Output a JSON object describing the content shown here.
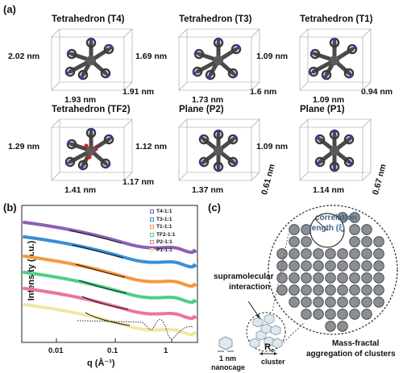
{
  "panel_a": {
    "letter": "(a)",
    "structures": [
      {
        "title": "Tetrahedron (T4)",
        "height": "2.02 nm",
        "width": "1.93 nm",
        "depth": "1.91 nm"
      },
      {
        "title": "Tetrahedron (T3)",
        "height": "1.69 nm",
        "width": "1.73 nm",
        "depth": "1.6 nm"
      },
      {
        "title": "Tetrahedron (T1)",
        "height": "1.09 nm",
        "width": "1.09 nm",
        "depth": "0.94 nm"
      },
      {
        "title": "Tetrahedron (TF2)",
        "height": "1.29 nm",
        "width": "1.41 nm",
        "depth": "1.17 nm"
      },
      {
        "title": "Plane (P2)",
        "height": "1.12 nm",
        "width": "1.37 nm",
        "depth": "0.61 nm"
      },
      {
        "title": "Plane (P1)",
        "height": "1.09 nm",
        "width": "1.14 nm",
        "depth": "0.67 nm"
      }
    ]
  },
  "panel_b": {
    "letter": "(b)",
    "ylabel": "Intensity (a.u.)",
    "xlabel": "q (Å⁻¹)",
    "x_ticks": [
      "0.01",
      "0.1",
      "1"
    ],
    "legend": [
      {
        "name": "T4-1:1",
        "color": "#8e5fb5"
      },
      {
        "name": "T3-1:1",
        "color": "#3a8fd6"
      },
      {
        "name": "T1-1:1",
        "color": "#f39a3c"
      },
      {
        "name": "TF2-1:1",
        "color": "#4fcf85"
      },
      {
        "name": "P2-1:1",
        "color": "#e8779b"
      },
      {
        "name": "P1-1:1",
        "color": "#f2e7a0"
      }
    ]
  },
  "panel_c": {
    "letter": "(c)",
    "correlation_label": "correlation",
    "correlation_label2": "length (ξ)",
    "supra_label": "supramolecular",
    "supra_label2": "interaction",
    "nanocage_label": "1 nm",
    "nanocage_label2": "nanocage",
    "rc_label": "R",
    "rc_sub": "c",
    "cluster_label": "cluster",
    "mass_label": "Mass-fractal",
    "mass_label2": "aggregation of clusters"
  },
  "colors": {
    "box_line": "#9a9a9a",
    "correlation_text": "#3d5f86",
    "cluster_gray": "#8a8f96"
  }
}
